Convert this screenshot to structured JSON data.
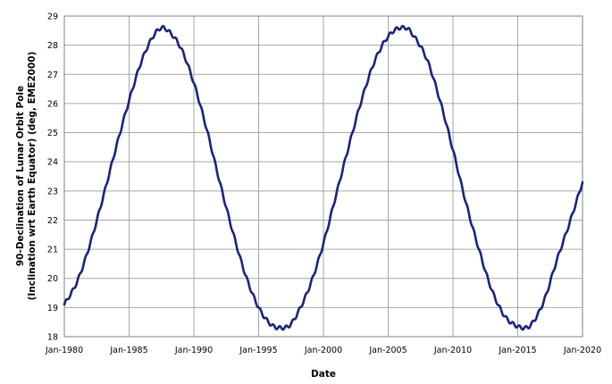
{
  "chart_data": {
    "type": "line",
    "title": "",
    "xlabel": "Date",
    "ylabel_lines": [
      "90-Declination of Lunar Orbit Pole",
      "(Inclination wrt Earth Equator) (deg, EME2000)"
    ],
    "x_ticks": [
      "Jan-1980",
      "Jan-1985",
      "Jan-1990",
      "Jan-1995",
      "Jan-2000",
      "Jan-2005",
      "Jan-2010",
      "Jan-2015",
      "Jan-2020"
    ],
    "y_ticks": [
      "18",
      "19",
      "20",
      "21",
      "22",
      "23",
      "24",
      "25",
      "26",
      "27",
      "28",
      "29"
    ],
    "xlim": [
      "1980-01-01",
      "2020-01-01"
    ],
    "ylim": [
      18,
      29
    ],
    "grid": true,
    "legend": "none",
    "line_color": "#1a237e",
    "series": [
      {
        "x": [
          "1980-01-01",
          "1981-01-01",
          "1982-01-01",
          "1983-01-01",
          "1984-01-01",
          "1985-01-01",
          "1986-01-01",
          "1987-01-01",
          "1987-08-01",
          "1988-01-01",
          "1989-01-01",
          "1990-01-01",
          "1991-01-01",
          "1992-01-01",
          "1993-01-01",
          "1994-01-01",
          "1995-01-01",
          "1996-01-01",
          "1996-10-01",
          "1997-06-01",
          "1998-01-01",
          "1999-01-01",
          "2000-01-01",
          "2001-01-01",
          "2002-01-01",
          "2003-01-01",
          "2004-01-01",
          "2005-01-01",
          "2006-01-01",
          "2006-05-01",
          "2007-01-01",
          "2008-01-01",
          "2009-01-01",
          "2010-01-01",
          "2011-01-01",
          "2012-01-01",
          "2013-01-01",
          "2014-01-01",
          "2015-01-01",
          "2015-07-01",
          "2016-01-01",
          "2017-01-01",
          "2018-01-01",
          "2019-01-01",
          "2020-01-01"
        ],
        "y": [
          19.1,
          19.9,
          21.2,
          22.8,
          24.5,
          26.1,
          27.5,
          28.4,
          28.6,
          28.5,
          27.9,
          26.7,
          25.1,
          23.3,
          21.6,
          20.1,
          19.0,
          18.4,
          18.3,
          18.4,
          18.8,
          19.8,
          21.2,
          22.9,
          24.6,
          26.2,
          27.5,
          28.3,
          28.6,
          28.6,
          28.3,
          27.5,
          26.1,
          24.4,
          22.6,
          21.0,
          19.6,
          18.7,
          18.35,
          18.3,
          18.4,
          19.2,
          20.6,
          21.9,
          23.3
        ]
      }
    ]
  }
}
